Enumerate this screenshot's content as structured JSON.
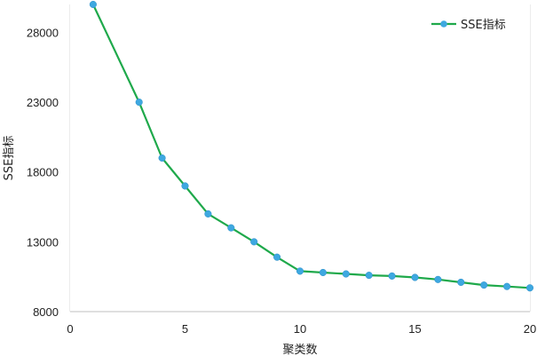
{
  "chart_data": {
    "type": "line",
    "title": "",
    "xlabel": "聚类数",
    "ylabel": "SSE指标",
    "xlim": [
      0,
      20
    ],
    "ylim": [
      8000,
      30000
    ],
    "xticks": [
      0,
      5,
      10,
      15,
      20
    ],
    "yticks": [
      8000,
      13000,
      18000,
      23000,
      28000
    ],
    "grid": true,
    "legend": {
      "position": "top-right"
    },
    "series": [
      {
        "name": "SSE指标",
        "line_color": "#1fa94b",
        "marker_color": "#3ea8e0",
        "x": [
          1,
          3,
          4,
          5,
          6,
          7,
          8,
          9,
          10,
          11,
          12,
          13,
          14,
          15,
          16,
          17,
          18,
          19,
          20
        ],
        "y": [
          30000,
          23000,
          19000,
          17000,
          15000,
          14000,
          13000,
          11900,
          10900,
          10800,
          10700,
          10600,
          10550,
          10450,
          10300,
          10100,
          9900,
          9800,
          9700
        ]
      }
    ]
  }
}
